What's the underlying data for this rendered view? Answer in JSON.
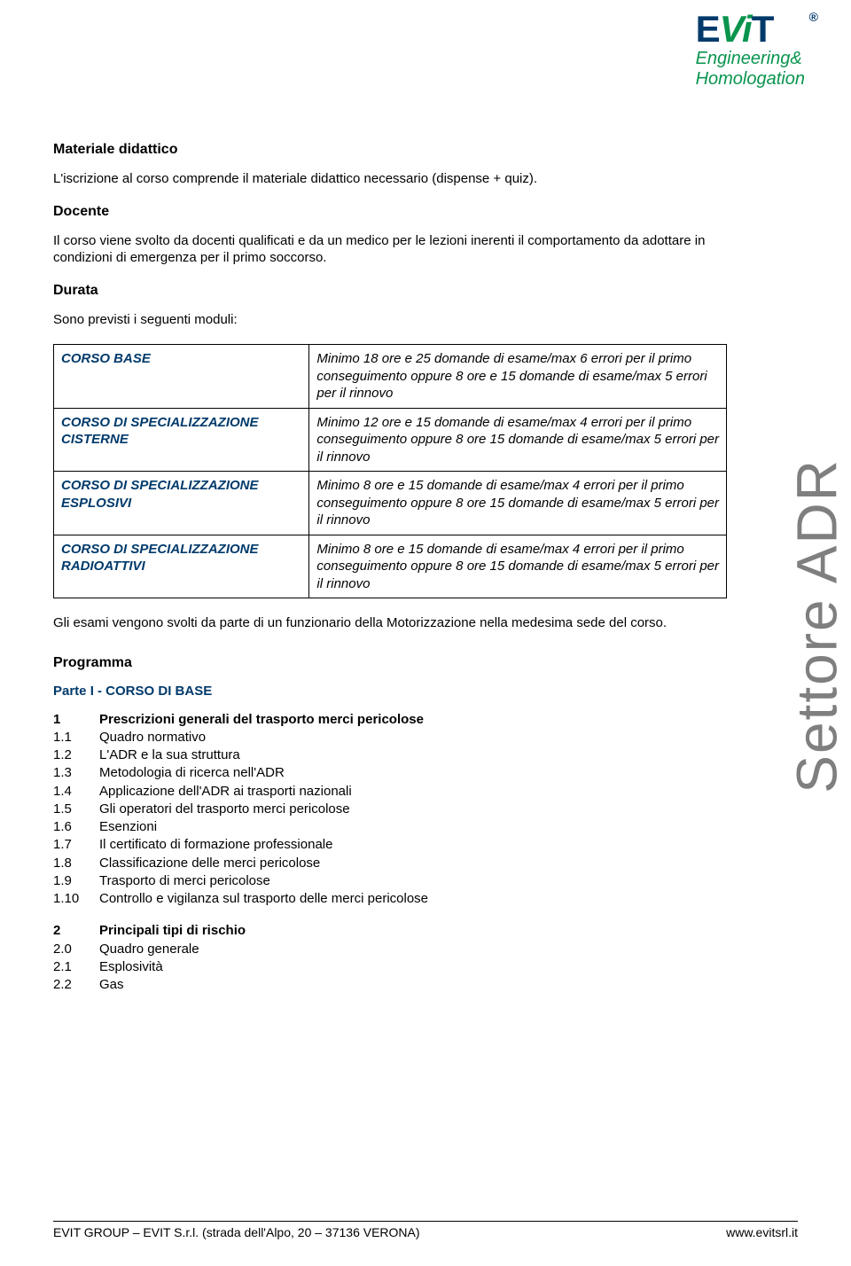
{
  "logo": {
    "brand_e": "E",
    "brand_vi": "Vi",
    "brand_t": "T",
    "reg": "®",
    "sub1": "Engineering&",
    "sub2": "Homologation"
  },
  "sidebar_label": "Settore ADR",
  "sections": {
    "materiale": {
      "title": "Materiale didattico",
      "body": "L'iscrizione al corso comprende il materiale didattico necessario (dispense + quiz)."
    },
    "docente": {
      "title": "Docente",
      "body": "Il corso viene svolto da docenti qualificati e da un medico per le lezioni inerenti il comportamento da adottare in condizioni di emergenza per il primo soccorso."
    },
    "durata": {
      "title": "Durata",
      "intro": "Sono previsti i seguenti moduli:",
      "rows": [
        {
          "left": "CORSO BASE",
          "right": "Minimo 18 ore e 25 domande di esame/max 6 errori per il primo conseguimento oppure 8 ore e 15 domande di esame/max 5 errori per il rinnovo"
        },
        {
          "left": "CORSO DI SPECIALIZZAZIONE CISTERNE",
          "right": "Minimo 12 ore e 15 domande di esame/max 4 errori per il primo conseguimento oppure 8 ore 15 domande di esame/max 5 errori per il rinnovo"
        },
        {
          "left": "CORSO DI SPECIALIZZAZIONE ESPLOSIVI",
          "right": "Minimo 8 ore e 15 domande di esame/max 4 errori per il primo conseguimento oppure 8 ore 15 domande di esame/max 5 errori per il rinnovo"
        },
        {
          "left": "CORSO DI SPECIALIZZAZIONE RADIOATTIVI",
          "right": "Minimo 8 ore e 15 domande di esame/max 4 errori per il primo conseguimento oppure 8 ore 15 domande di esame/max 5 errori per il rinnovo"
        }
      ],
      "after": "Gli esami vengono svolti da parte di un funzionario della Motorizzazione nella medesima sede del corso."
    },
    "programma": {
      "title": "Programma",
      "parte": "Parte I - CORSO DI BASE",
      "group1": [
        {
          "n": "1",
          "t": "Prescrizioni generali del trasporto merci pericolose",
          "bold": true
        },
        {
          "n": "1.1",
          "t": "Quadro normativo"
        },
        {
          "n": "1.2",
          "t": "L'ADR e la sua struttura"
        },
        {
          "n": "1.3",
          "t": "Metodologia di ricerca nell'ADR"
        },
        {
          "n": "1.4",
          "t": "Applicazione dell'ADR ai trasporti nazionali"
        },
        {
          "n": "1.5",
          "t": "Gli operatori del trasporto merci pericolose"
        },
        {
          "n": "1.6",
          "t": "Esenzioni"
        },
        {
          "n": "1.7",
          "t": "Il certificato di formazione professionale"
        },
        {
          "n": "1.8",
          "t": "Classificazione delle merci pericolose"
        },
        {
          "n": "1.9",
          "t": "Trasporto di merci pericolose"
        },
        {
          "n": "1.10",
          "t": "Controllo e vigilanza sul trasporto delle merci pericolose"
        }
      ],
      "group2": [
        {
          "n": "2",
          "t": "Principali tipi di rischio",
          "bold": true
        },
        {
          "n": "2.0",
          "t": "Quadro generale"
        },
        {
          "n": "2.1",
          "t": "Esplosività"
        },
        {
          "n": "2.2",
          "t": "Gas"
        }
      ]
    }
  },
  "footer": {
    "left": "EVIT GROUP – EVIT S.r.l. (strada dell'Alpo, 20 – 37136 VERONA)",
    "right": "www.evitsrl.it"
  },
  "colors": {
    "brand_green": "#09944e",
    "brand_blue": "#003a6b",
    "gray": "#7f7f7f",
    "text": "#000000",
    "bg": "#ffffff"
  }
}
